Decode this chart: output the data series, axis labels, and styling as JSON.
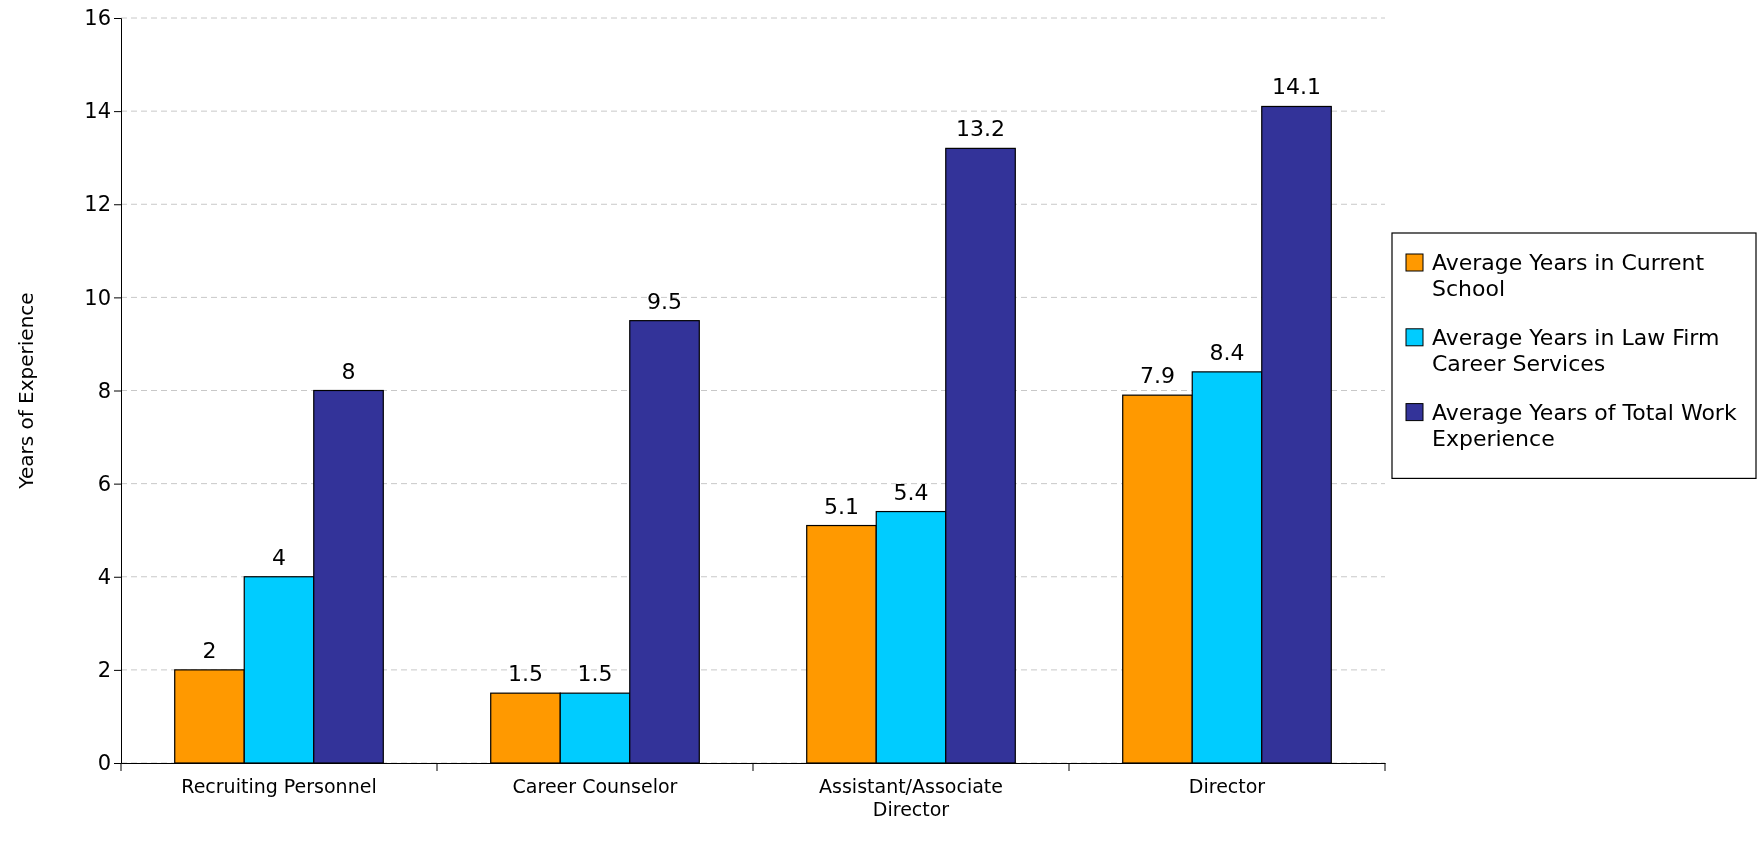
{
  "chart_data": {
    "type": "bar",
    "ylabel": "Years of Experience",
    "categories": [
      "Recruiting Personnel",
      "Career Counselor",
      "Assistant/Associate Director",
      "Director"
    ],
    "series": [
      {
        "name": "Average Years in Current School",
        "color": "#ff9900",
        "values": [
          2,
          1.5,
          5.1,
          7.9
        ]
      },
      {
        "name": "Average Years in Law Firm Career Services",
        "color": "#00ccff",
        "values": [
          4,
          1.5,
          5.4,
          8.4
        ]
      },
      {
        "name": "Average Years of Total Work Experience",
        "color": "#333399",
        "values": [
          8,
          9.5,
          13.2,
          14.1
        ]
      }
    ],
    "ylim": [
      0,
      16
    ],
    "yticks": [
      0,
      2,
      4,
      6,
      8,
      10,
      12,
      14,
      16
    ],
    "grid": "y",
    "legend": "right",
    "data_labels": true
  }
}
